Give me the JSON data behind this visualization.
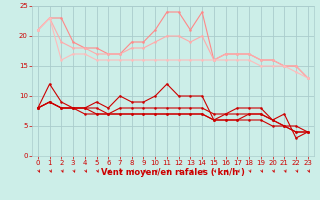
{
  "x": [
    0,
    1,
    2,
    3,
    4,
    5,
    6,
    7,
    8,
    9,
    10,
    11,
    12,
    13,
    14,
    15,
    16,
    17,
    18,
    19,
    20,
    21,
    22,
    23
  ],
  "series": [
    {
      "name": "rafales_max",
      "color": "#ff8888",
      "alpha": 1.0,
      "lw": 0.8,
      "marker": "o",
      "ms": 1.8,
      "values": [
        21,
        23,
        23,
        19,
        18,
        18,
        17,
        17,
        19,
        19,
        21,
        24,
        24,
        21,
        24,
        16,
        17,
        17,
        17,
        16,
        16,
        15,
        15,
        13
      ]
    },
    {
      "name": "rafales_mid",
      "color": "#ffaaaa",
      "alpha": 1.0,
      "lw": 0.8,
      "marker": "o",
      "ms": 1.8,
      "values": [
        21,
        23,
        19,
        18,
        18,
        17,
        17,
        17,
        18,
        18,
        19,
        20,
        20,
        19,
        20,
        16,
        17,
        17,
        17,
        16,
        16,
        15,
        15,
        13
      ]
    },
    {
      "name": "rafales_low",
      "color": "#ffbbbb",
      "alpha": 1.0,
      "lw": 0.8,
      "marker": "o",
      "ms": 1.8,
      "values": [
        21,
        23,
        16,
        17,
        17,
        16,
        16,
        16,
        16,
        16,
        16,
        16,
        16,
        16,
        16,
        16,
        16,
        16,
        16,
        15,
        15,
        15,
        14,
        13
      ]
    },
    {
      "name": "vent_max",
      "color": "#cc0000",
      "alpha": 1.0,
      "lw": 0.8,
      "marker": "o",
      "ms": 1.8,
      "values": [
        8,
        12,
        9,
        8,
        8,
        9,
        8,
        10,
        9,
        9,
        10,
        12,
        10,
        10,
        10,
        6,
        7,
        8,
        8,
        8,
        6,
        7,
        3,
        4
      ]
    },
    {
      "name": "vent_mean1",
      "color": "#cc0000",
      "alpha": 1.0,
      "lw": 0.8,
      "marker": "o",
      "ms": 1.8,
      "values": [
        8,
        9,
        8,
        8,
        8,
        8,
        7,
        8,
        8,
        8,
        8,
        8,
        8,
        8,
        8,
        7,
        7,
        7,
        7,
        7,
        6,
        5,
        5,
        4
      ]
    },
    {
      "name": "vent_mean2",
      "color": "#cc0000",
      "alpha": 1.0,
      "lw": 0.8,
      "marker": "o",
      "ms": 1.8,
      "values": [
        8,
        9,
        8,
        8,
        8,
        7,
        7,
        7,
        7,
        7,
        7,
        7,
        7,
        7,
        7,
        6,
        6,
        6,
        7,
        7,
        6,
        5,
        4,
        4
      ]
    },
    {
      "name": "vent_min",
      "color": "#cc0000",
      "alpha": 1.0,
      "lw": 0.8,
      "marker": "o",
      "ms": 1.8,
      "values": [
        8,
        9,
        8,
        8,
        7,
        7,
        7,
        7,
        7,
        7,
        7,
        7,
        7,
        7,
        7,
        6,
        6,
        6,
        6,
        6,
        5,
        5,
        4,
        4
      ]
    }
  ],
  "xlabel": "Vent moyen/en rafales ( kn/h )",
  "xlim": [
    -0.5,
    23.5
  ],
  "ylim": [
    0,
    25
  ],
  "yticks": [
    0,
    5,
    10,
    15,
    20,
    25
  ],
  "xticks": [
    0,
    1,
    2,
    3,
    4,
    5,
    6,
    7,
    8,
    9,
    10,
    11,
    12,
    13,
    14,
    15,
    16,
    17,
    18,
    19,
    20,
    21,
    22,
    23
  ],
  "bg_color": "#cceee8",
  "grid_color": "#aacccc",
  "xlabel_color": "#cc0000",
  "tick_color": "#cc0000",
  "xlabel_fontsize": 6.0,
  "tick_fontsize": 5.0
}
